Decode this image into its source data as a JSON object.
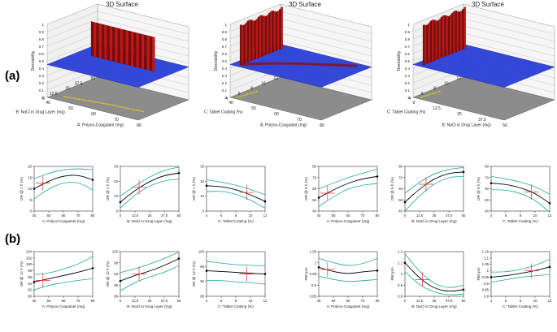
{
  "panel_labels": [
    "(a)",
    "(b)"
  ],
  "colors": {
    "surface_blue": "#2a3fd6",
    "floor_gray": "#8c8c8c",
    "band_green": "#1aa89a",
    "fit_black": "#000000",
    "crosshair_red": "#e0302a",
    "wall_red": "#b41414"
  },
  "chart_data": [
    {
      "type": "surface",
      "title": "3D Surface",
      "zlabel": "Desirability",
      "zticks": [
        "0",
        "0.1",
        "0.2",
        "0.3",
        "0.4",
        "0.5",
        "0.6",
        "0.7",
        "0.8",
        "0.9",
        "1"
      ],
      "xlabel": "A: Polyox-Coagulant (mg)",
      "xticks": [
        "40",
        "50",
        "60",
        "70",
        "80"
      ],
      "ylabel": "B: NaCl in Drug Layer (mg)",
      "yticks": [
        "0",
        "12.5",
        "25",
        "37.5",
        "50"
      ]
    },
    {
      "type": "surface",
      "title": "3D Surface",
      "zlabel": "Desirability",
      "zticks": [
        "0",
        "0.1",
        "0.2",
        "0.3",
        "0.4",
        "0.5",
        "0.6",
        "0.7",
        "0.8",
        "0.9",
        "1"
      ],
      "xlabel": "A: Polyox-Coagulant (mg)",
      "xticks": [
        "40",
        "50",
        "60",
        "70",
        "80"
      ],
      "ylabel": "C: Tablet Coating (%)",
      "yticks": [
        "4",
        "6",
        "8",
        "10",
        "12"
      ]
    },
    {
      "type": "surface",
      "title": "3D Surface",
      "zlabel": "Desirability",
      "zticks": [
        "0",
        "0.1",
        "0.2",
        "0.3",
        "0.4",
        "0.5",
        "0.6",
        "0.7",
        "0.8",
        "0.9",
        "1"
      ],
      "xlabel": "B: NaCl in Drug Layer (mg)",
      "xticks": [
        "0",
        "12.5",
        "25",
        "37.5",
        "50"
      ],
      "ylabel": "C: Tablet Coating (%)",
      "yticks": [
        "4",
        "6",
        "8",
        "10",
        "12"
      ]
    },
    {
      "type": "line",
      "xlabel": "A: Polyox-Coagulant (mg)",
      "ylabel": "DR @ 1 h (%)",
      "xlim": [
        40,
        80
      ],
      "xticks": [
        "40",
        "50",
        "60",
        "70",
        "80"
      ],
      "ylim": [
        0,
        20
      ],
      "yticks": [
        "0",
        "5",
        "10",
        "15",
        "20"
      ],
      "fit": [
        [
          40,
          10
        ],
        [
          50,
          13.5
        ],
        [
          60,
          15.8
        ],
        [
          70,
          16.2
        ],
        [
          80,
          14
        ]
      ],
      "upper": [
        [
          40,
          14.5
        ],
        [
          50,
          17
        ],
        [
          60,
          18.6
        ],
        [
          70,
          19
        ],
        [
          80,
          18.5
        ]
      ],
      "lower": [
        [
          40,
          5.5
        ],
        [
          50,
          10
        ],
        [
          60,
          12.8
        ],
        [
          70,
          13
        ],
        [
          80,
          9.5
        ]
      ],
      "cross": [
        46,
        12.5
      ]
    },
    {
      "type": "line",
      "xlabel": "B: NaCl in Drug Layer (mg)",
      "ylabel": "DR @ 1 h (%)",
      "xlim": [
        0,
        50
      ],
      "xticks": [
        "0",
        "12.5",
        "25",
        "37.5",
        "50"
      ],
      "ylim": [
        0,
        30
      ],
      "yticks": [
        "0",
        "10",
        "20",
        "30"
      ],
      "fit": [
        [
          0,
          6
        ],
        [
          12.5,
          14
        ],
        [
          25,
          20
        ],
        [
          37.5,
          24
        ],
        [
          50,
          25.5
        ]
      ],
      "upper": [
        [
          0,
          10
        ],
        [
          12.5,
          17
        ],
        [
          25,
          23
        ],
        [
          37.5,
          27.5
        ],
        [
          50,
          29.5
        ]
      ],
      "lower": [
        [
          0,
          2
        ],
        [
          12.5,
          11
        ],
        [
          25,
          17
        ],
        [
          37.5,
          20.5
        ],
        [
          50,
          21.5
        ]
      ],
      "cross": [
        16,
        16
      ]
    },
    {
      "type": "line",
      "xlabel": "C: Tablet Coating (%)",
      "ylabel": "DR @ 1 h (%)",
      "xlim": [
        4,
        12
      ],
      "xticks": [
        "4",
        "6",
        "8",
        "10",
        "12"
      ],
      "ylim": [
        0,
        30
      ],
      "yticks": [
        "0",
        "10",
        "20",
        "30"
      ],
      "fit": [
        [
          4,
          17
        ],
        [
          6,
          16.5
        ],
        [
          8,
          14.5
        ],
        [
          10,
          11
        ],
        [
          12,
          6.5
        ]
      ],
      "upper": [
        [
          4,
          21
        ],
        [
          6,
          19.5
        ],
        [
          8,
          17.5
        ],
        [
          10,
          14.5
        ],
        [
          12,
          11
        ]
      ],
      "lower": [
        [
          4,
          13
        ],
        [
          6,
          13.5
        ],
        [
          8,
          11.5
        ],
        [
          10,
          7.5
        ],
        [
          12,
          2
        ]
      ],
      "cross": [
        9.5,
        12.5
      ]
    },
    {
      "type": "line",
      "xlabel": "A: Polyox-Coagulant (mg)",
      "ylabel": "DR @ 5 h (%)",
      "xlim": [
        40,
        80
      ],
      "xticks": [
        "40",
        "50",
        "60",
        "70",
        "80"
      ],
      "ylim": [
        40,
        80
      ],
      "yticks": [
        "40",
        "50",
        "60",
        "70",
        "80"
      ],
      "fit": [
        [
          40,
          52
        ],
        [
          50,
          59
        ],
        [
          60,
          65
        ],
        [
          70,
          69
        ],
        [
          80,
          71
        ]
      ],
      "upper": [
        [
          40,
          60
        ],
        [
          50,
          65
        ],
        [
          60,
          70
        ],
        [
          70,
          74
        ],
        [
          80,
          77.5
        ]
      ],
      "lower": [
        [
          40,
          44
        ],
        [
          50,
          53
        ],
        [
          60,
          60
        ],
        [
          70,
          63.5
        ],
        [
          80,
          64.5
        ]
      ],
      "cross": [
        46,
        56
      ]
    },
    {
      "type": "line",
      "xlabel": "B: NaCl in Drug Layer (mg)",
      "ylabel": "DR @ 5 h (%)",
      "xlim": [
        0,
        50
      ],
      "xticks": [
        "0",
        "12.5",
        "25",
        "37.5",
        "50"
      ],
      "ylim": [
        40,
        80
      ],
      "yticks": [
        "40",
        "50",
        "60",
        "70",
        "80"
      ],
      "fit": [
        [
          0,
          48
        ],
        [
          12.5,
          60
        ],
        [
          25,
          69
        ],
        [
          37.5,
          74
        ],
        [
          50,
          75
        ]
      ],
      "upper": [
        [
          0,
          56
        ],
        [
          12.5,
          66
        ],
        [
          25,
          73.5
        ],
        [
          37.5,
          77.5
        ],
        [
          50,
          79
        ]
      ],
      "lower": [
        [
          0,
          40
        ],
        [
          12.5,
          54
        ],
        [
          25,
          64.5
        ],
        [
          37.5,
          70.5
        ],
        [
          50,
          71
        ]
      ],
      "cross": [
        18,
        64
      ]
    },
    {
      "type": "line",
      "xlabel": "C: Tablet Coating (%)",
      "ylabel": "DR @ 5 h (%)",
      "xlim": [
        4,
        12
      ],
      "xticks": [
        "4",
        "6",
        "8",
        "10",
        "12"
      ],
      "ylim": [
        40,
        80
      ],
      "yticks": [
        "40",
        "50",
        "60",
        "70",
        "80"
      ],
      "fit": [
        [
          4,
          65
        ],
        [
          6,
          64
        ],
        [
          8,
          61
        ],
        [
          10,
          56
        ],
        [
          12,
          47
        ]
      ],
      "upper": [
        [
          4,
          71
        ],
        [
          6,
          69
        ],
        [
          8,
          66
        ],
        [
          10,
          62
        ],
        [
          12,
          55
        ]
      ],
      "lower": [
        [
          4,
          59
        ],
        [
          6,
          59
        ],
        [
          8,
          56
        ],
        [
          10,
          50
        ],
        [
          12,
          39
        ]
      ],
      "cross": [
        9.5,
        57
      ]
    },
    {
      "type": "line",
      "xlabel": "A: Polyox-Coagulant (mg)",
      "ylabel": "DR @ 12 h (%)",
      "xlim": [
        40,
        80
      ],
      "xticks": [
        "40",
        "50",
        "60",
        "70",
        "80"
      ],
      "ylim": [
        90,
        104
      ],
      "yticks": [
        "90",
        "92",
        "94",
        "96",
        "98",
        "100",
        "102",
        "104"
      ],
      "fit": [
        [
          40,
          94.5
        ],
        [
          50,
          95.5
        ],
        [
          60,
          96.5
        ],
        [
          70,
          97.5
        ],
        [
          80,
          98.8
        ]
      ],
      "upper": [
        [
          40,
          96.8
        ],
        [
          50,
          97.2
        ],
        [
          60,
          98.5
        ],
        [
          70,
          100
        ],
        [
          80,
          102.5
        ]
      ],
      "lower": [
        [
          40,
          92
        ],
        [
          50,
          93.5
        ],
        [
          60,
          94.3
        ],
        [
          70,
          95
        ],
        [
          80,
          95.5
        ]
      ],
      "cross": [
        46,
        95
      ]
    },
    {
      "type": "line",
      "xlabel": "B: NaCl in Drug Layer (mg)",
      "ylabel": "DR @ 12 h (%)",
      "xlim": [
        0,
        50
      ],
      "xticks": [
        "0",
        "12.5",
        "25",
        "37.5",
        "50"
      ],
      "ylim": [
        86,
        102
      ],
      "yticks": [
        "86",
        "90",
        "94",
        "98",
        "102"
      ],
      "fit": [
        [
          0,
          91.5
        ],
        [
          12.5,
          93.5
        ],
        [
          25,
          95
        ],
        [
          37.5,
          97
        ],
        [
          50,
          99.5
        ]
      ],
      "upper": [
        [
          0,
          94.5
        ],
        [
          12.5,
          95.8
        ],
        [
          25,
          97.5
        ],
        [
          37.5,
          99.5
        ],
        [
          50,
          101.8
        ]
      ],
      "lower": [
        [
          0,
          88
        ],
        [
          12.5,
          91
        ],
        [
          25,
          93
        ],
        [
          37.5,
          94.5
        ],
        [
          50,
          97
        ]
      ],
      "cross": [
        16,
        94
      ]
    },
    {
      "type": "line",
      "xlabel": "C: Tablet Coating (%)",
      "ylabel": "DR @ 12 h (%)",
      "xlim": [
        4,
        12
      ],
      "xticks": [
        "4",
        "6",
        "8",
        "10",
        "12"
      ],
      "ylim": [
        88,
        102
      ],
      "yticks": [
        "88",
        "92",
        "96",
        "100"
      ],
      "fit": [
        [
          4,
          96
        ],
        [
          6,
          95.8
        ],
        [
          8,
          95.5
        ],
        [
          10,
          95.2
        ],
        [
          12,
          95
        ]
      ],
      "upper": [
        [
          4,
          99
        ],
        [
          6,
          98.4
        ],
        [
          8,
          97.9
        ],
        [
          10,
          97.7
        ],
        [
          12,
          97.6
        ]
      ],
      "lower": [
        [
          4,
          93
        ],
        [
          6,
          93
        ],
        [
          8,
          92.5
        ],
        [
          10,
          92.3
        ],
        [
          12,
          91.8
        ]
      ],
      "cross": [
        9.5,
        95
      ]
    },
    {
      "type": "line",
      "xlabel": "A: Polyox-Coagulant (mg)",
      "ylabel": "R50 pm",
      "xlim": [
        40,
        80
      ],
      "xticks": [
        "40",
        "50",
        "60",
        "70",
        "80"
      ],
      "ylim": [
        0.85,
        1.05
      ],
      "yticks": [
        "0.85",
        "0.9",
        "0.95",
        "1",
        "1.05"
      ],
      "fit": [
        [
          40,
          0.98
        ],
        [
          50,
          0.96
        ],
        [
          60,
          0.95
        ],
        [
          70,
          0.96
        ],
        [
          80,
          0.965
        ]
      ],
      "upper": [
        [
          40,
          1.02
        ],
        [
          50,
          1.0
        ],
        [
          60,
          0.985
        ],
        [
          70,
          0.995
        ],
        [
          80,
          1.02
        ]
      ],
      "lower": [
        [
          40,
          0.94
        ],
        [
          50,
          0.925
        ],
        [
          60,
          0.915
        ],
        [
          70,
          0.92
        ],
        [
          80,
          0.925
        ]
      ],
      "cross": [
        46,
        0.97
      ]
    },
    {
      "type": "line",
      "xlabel": "B: NaCl in Drug Layer (mg)",
      "ylabel": "R50 pm",
      "xlim": [
        0,
        50
      ],
      "xticks": [
        "0",
        "12.5",
        "25",
        "37.5",
        "50"
      ],
      "ylim": [
        0.8,
        1.2
      ],
      "yticks": [
        "0.8",
        "0.9",
        "1",
        "1.1",
        "1.2"
      ],
      "fit": [
        [
          0,
          1.1
        ],
        [
          12.5,
          0.96
        ],
        [
          25,
          0.87
        ],
        [
          37.5,
          0.84
        ],
        [
          50,
          0.86
        ]
      ],
      "upper": [
        [
          0,
          1.18
        ],
        [
          12.5,
          1.02
        ],
        [
          25,
          0.91
        ],
        [
          37.5,
          0.87
        ],
        [
          50,
          0.9
        ]
      ],
      "lower": [
        [
          0,
          1.02
        ],
        [
          12.5,
          0.9
        ],
        [
          25,
          0.835
        ],
        [
          37.5,
          0.81
        ],
        [
          50,
          0.82
        ]
      ],
      "cross": [
        15,
        0.95
      ]
    },
    {
      "type": "line",
      "xlabel": "C: Tablet Coating (%)",
      "ylabel": "R50 pm",
      "xlim": [
        4,
        12
      ],
      "xticks": [
        "4",
        "6",
        "8",
        "10",
        "12"
      ],
      "ylim": [
        0.8,
        1.15
      ],
      "yticks": [
        "0.8",
        "0.85",
        "0.9",
        "0.95",
        "1",
        "1.05",
        "1.1",
        "1.15"
      ],
      "fit": [
        [
          4,
          0.95
        ],
        [
          6,
          0.96
        ],
        [
          8,
          0.98
        ],
        [
          10,
          1.0
        ],
        [
          12,
          1.03
        ]
      ],
      "upper": [
        [
          4,
          0.99
        ],
        [
          6,
          0.99
        ],
        [
          8,
          1.01
        ],
        [
          10,
          1.04
        ],
        [
          12,
          1.09
        ]
      ],
      "lower": [
        [
          4,
          0.91
        ],
        [
          6,
          0.93
        ],
        [
          8,
          0.95
        ],
        [
          10,
          0.96
        ],
        [
          12,
          0.97
        ]
      ],
      "cross": [
        9.5,
        1.0
      ]
    }
  ]
}
